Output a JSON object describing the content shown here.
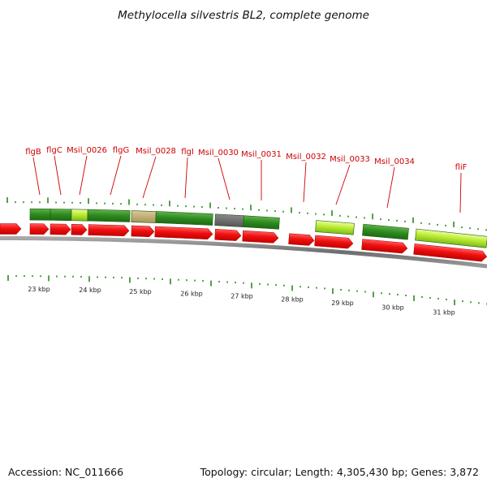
{
  "title": "Methylocella silvestris BL2, complete genome",
  "footer": {
    "accession": "Accession: NC_011666",
    "summary": "Topology: circular; Length: 4,305,430 bp; Genes: 3,872"
  },
  "colors": {
    "gene_label": "#cc0000",
    "cds_red": "#ee1111",
    "feature_green": "#2d8a1e",
    "feature_lightgreen": "#b6e82e",
    "feature_tan": "#b7a56a",
    "feature_gray": "#666666",
    "backbone": "#777777",
    "tick": "#2a8a1a"
  },
  "gene_labels": [
    {
      "text": "flgB"
    },
    {
      "text": "flgC"
    },
    {
      "text": "Msil_0026"
    },
    {
      "text": "flgG"
    },
    {
      "text": "Msil_0028"
    },
    {
      "text": "flgI"
    },
    {
      "text": "Msil_0030"
    },
    {
      "text": "Msil_0031"
    },
    {
      "text": "Msil_0032"
    },
    {
      "text": "Msil_0033"
    },
    {
      "text": "Msil_0034"
    },
    {
      "text": "fliF"
    }
  ],
  "kbp_labels": [
    "23 kbp",
    "24 kbp",
    "25 kbp",
    "26 kbp",
    "27 kbp",
    "28 kbp",
    "29 kbp",
    "30 kbp",
    "31 kbp"
  ]
}
